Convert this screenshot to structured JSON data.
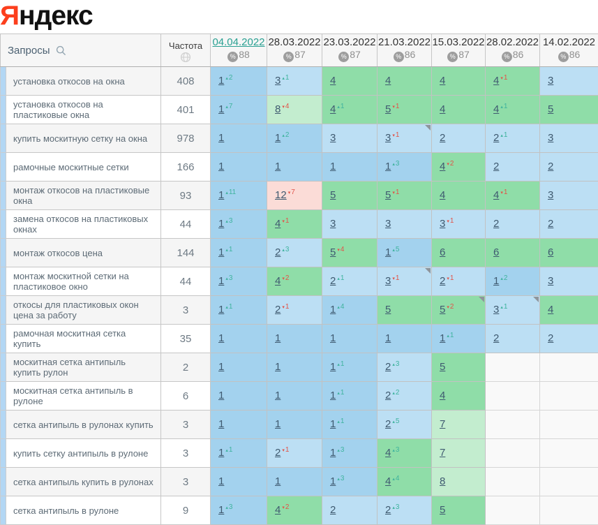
{
  "logo": {
    "first_letter": "Я",
    "rest": "ндекс"
  },
  "colors": {
    "logo_red": "#fc3f1d",
    "accent_link": "#2aa092",
    "pos_top1_blue": "#a3d2ee",
    "pos_top3_blue": "#bcdff4",
    "pos_top10_green": "#8fdda8",
    "pos_top10_light_green": "#c3edcf",
    "pos_over10_pink": "#fbdcd7",
    "delta_up_green": "#3fb39e",
    "delta_down_red": "#e25449"
  },
  "table": {
    "queries_header": "Запросы",
    "frequency_header": "Частота",
    "date_columns": [
      {
        "date": "04.04.2022",
        "visibility": "88",
        "active": true
      },
      {
        "date": "28.03.2022",
        "visibility": "87",
        "active": false
      },
      {
        "date": "23.03.2022",
        "visibility": "87",
        "active": false
      },
      {
        "date": "21.03.2022",
        "visibility": "86",
        "active": false
      },
      {
        "date": "15.03.2022",
        "visibility": "87",
        "active": false
      },
      {
        "date": "28.02.2022",
        "visibility": "86",
        "active": false
      },
      {
        "date": "14.02.2022",
        "visibility": "86",
        "active": false
      }
    ],
    "rows": [
      {
        "query": "установка откосов на окна",
        "frequency": "408",
        "cells": [
          {
            "pos": 1,
            "delta": 2,
            "dir": "up"
          },
          {
            "pos": 3,
            "delta": 1,
            "dir": "up"
          },
          {
            "pos": 4
          },
          {
            "pos": 4
          },
          {
            "pos": 4
          },
          {
            "pos": 4,
            "delta": 1,
            "dir": "down"
          },
          {
            "pos": 3
          }
        ]
      },
      {
        "query": "установка откосов на пластиковые окна",
        "frequency": "401",
        "cells": [
          {
            "pos": 1,
            "delta": 7,
            "dir": "up"
          },
          {
            "pos": 8,
            "delta": 4,
            "dir": "down"
          },
          {
            "pos": 4,
            "delta": 1,
            "dir": "up"
          },
          {
            "pos": 5,
            "delta": 1,
            "dir": "down"
          },
          {
            "pos": 4
          },
          {
            "pos": 4,
            "delta": 1,
            "dir": "up"
          },
          {
            "pos": 5
          }
        ]
      },
      {
        "query": "купить москитную сетку на окна",
        "frequency": "978",
        "cells": [
          {
            "pos": 1
          },
          {
            "pos": 1,
            "delta": 2,
            "dir": "up"
          },
          {
            "pos": 3
          },
          {
            "pos": 3,
            "delta": 1,
            "dir": "down",
            "corner": true
          },
          {
            "pos": 2
          },
          {
            "pos": 2,
            "delta": 1,
            "dir": "up"
          },
          {
            "pos": 3
          }
        ]
      },
      {
        "query": "рамочные москитные сетки",
        "frequency": "166",
        "cells": [
          {
            "pos": 1
          },
          {
            "pos": 1
          },
          {
            "pos": 1
          },
          {
            "pos": 1,
            "delta": 3,
            "dir": "up"
          },
          {
            "pos": 4,
            "delta": 2,
            "dir": "down"
          },
          {
            "pos": 2
          },
          {
            "pos": 2
          }
        ]
      },
      {
        "query": "монтаж откосов на пластиковые окна",
        "frequency": "93",
        "cells": [
          {
            "pos": 1,
            "delta": 11,
            "dir": "up"
          },
          {
            "pos": 12,
            "delta": 7,
            "dir": "down"
          },
          {
            "pos": 5
          },
          {
            "pos": 5,
            "delta": 1,
            "dir": "down"
          },
          {
            "pos": 4
          },
          {
            "pos": 4,
            "delta": 1,
            "dir": "down"
          },
          {
            "pos": 3
          }
        ]
      },
      {
        "query": "замена откосов на пластиковых окнах",
        "frequency": "44",
        "cells": [
          {
            "pos": 1,
            "delta": 3,
            "dir": "up"
          },
          {
            "pos": 4,
            "delta": 1,
            "dir": "down"
          },
          {
            "pos": 3
          },
          {
            "pos": 3
          },
          {
            "pos": 3,
            "delta": 1,
            "dir": "down"
          },
          {
            "pos": 2
          },
          {
            "pos": 2
          }
        ]
      },
      {
        "query": "монтаж откосов цена",
        "frequency": "144",
        "cells": [
          {
            "pos": 1,
            "delta": 1,
            "dir": "up"
          },
          {
            "pos": 2,
            "delta": 3,
            "dir": "up"
          },
          {
            "pos": 5,
            "delta": 4,
            "dir": "down"
          },
          {
            "pos": 1,
            "delta": 5,
            "dir": "up"
          },
          {
            "pos": 6
          },
          {
            "pos": 6
          },
          {
            "pos": 6
          }
        ]
      },
      {
        "query": "монтаж москитной сетки на пластиковое окно",
        "frequency": "44",
        "cells": [
          {
            "pos": 1,
            "delta": 3,
            "dir": "up"
          },
          {
            "pos": 4,
            "delta": 2,
            "dir": "down"
          },
          {
            "pos": 2,
            "delta": 1,
            "dir": "up"
          },
          {
            "pos": 3,
            "delta": 1,
            "dir": "down",
            "corner": true
          },
          {
            "pos": 2,
            "delta": 1,
            "dir": "down"
          },
          {
            "pos": 1,
            "delta": 2,
            "dir": "up"
          },
          {
            "pos": 3
          }
        ]
      },
      {
        "query": "откосы для пластиковых окон цена за работу",
        "frequency": "3",
        "cells": [
          {
            "pos": 1,
            "delta": 1,
            "dir": "up"
          },
          {
            "pos": 2,
            "delta": 1,
            "dir": "down"
          },
          {
            "pos": 1,
            "delta": 4,
            "dir": "up"
          },
          {
            "pos": 5
          },
          {
            "pos": 5,
            "delta": 2,
            "dir": "down",
            "corner": true
          },
          {
            "pos": 3,
            "delta": 1,
            "dir": "up",
            "corner": true
          },
          {
            "pos": 4
          }
        ]
      },
      {
        "query": "рамочная москитная сетка купить",
        "frequency": "35",
        "cells": [
          {
            "pos": 1
          },
          {
            "pos": 1
          },
          {
            "pos": 1
          },
          {
            "pos": 1
          },
          {
            "pos": 1,
            "delta": 1,
            "dir": "up"
          },
          {
            "pos": 2
          },
          {
            "pos": 2
          }
        ]
      },
      {
        "query": "москитная сетка антипыль купить рулон",
        "frequency": "2",
        "cells": [
          {
            "pos": 1
          },
          {
            "pos": 1
          },
          {
            "pos": 1,
            "delta": 1,
            "dir": "up"
          },
          {
            "pos": 2,
            "delta": 3,
            "dir": "up"
          },
          {
            "pos": 5
          },
          {},
          {}
        ]
      },
      {
        "query": "москитная сетка антипыль в рулоне",
        "frequency": "6",
        "cells": [
          {
            "pos": 1
          },
          {
            "pos": 1
          },
          {
            "pos": 1,
            "delta": 1,
            "dir": "up"
          },
          {
            "pos": 2,
            "delta": 2,
            "dir": "up"
          },
          {
            "pos": 4
          },
          {},
          {}
        ]
      },
      {
        "query": "сетка антипыль в рулонах купить",
        "frequency": "3",
        "cells": [
          {
            "pos": 1
          },
          {
            "pos": 1
          },
          {
            "pos": 1,
            "delta": 1,
            "dir": "up"
          },
          {
            "pos": 2,
            "delta": 5,
            "dir": "up"
          },
          {
            "pos": 7
          },
          {},
          {}
        ]
      },
      {
        "query": "купить сетку антипыль в рулоне",
        "frequency": "3",
        "cells": [
          {
            "pos": 1,
            "delta": 1,
            "dir": "up"
          },
          {
            "pos": 2,
            "delta": 1,
            "dir": "down"
          },
          {
            "pos": 1,
            "delta": 3,
            "dir": "up"
          },
          {
            "pos": 4,
            "delta": 3,
            "dir": "up"
          },
          {
            "pos": 7
          },
          {},
          {}
        ]
      },
      {
        "query": "сетка антипыль купить в рулонах",
        "frequency": "3",
        "cells": [
          {
            "pos": 1
          },
          {
            "pos": 1
          },
          {
            "pos": 1,
            "delta": 3,
            "dir": "up"
          },
          {
            "pos": 4,
            "delta": 4,
            "dir": "up"
          },
          {
            "pos": 8
          },
          {},
          {}
        ]
      },
      {
        "query": "сетка антипыль в рулоне",
        "frequency": "9",
        "cells": [
          {
            "pos": 1,
            "delta": 3,
            "dir": "up"
          },
          {
            "pos": 4,
            "delta": 2,
            "dir": "down"
          },
          {
            "pos": 2
          },
          {
            "pos": 2,
            "delta": 3,
            "dir": "up"
          },
          {
            "pos": 5
          },
          {},
          {}
        ]
      }
    ]
  }
}
